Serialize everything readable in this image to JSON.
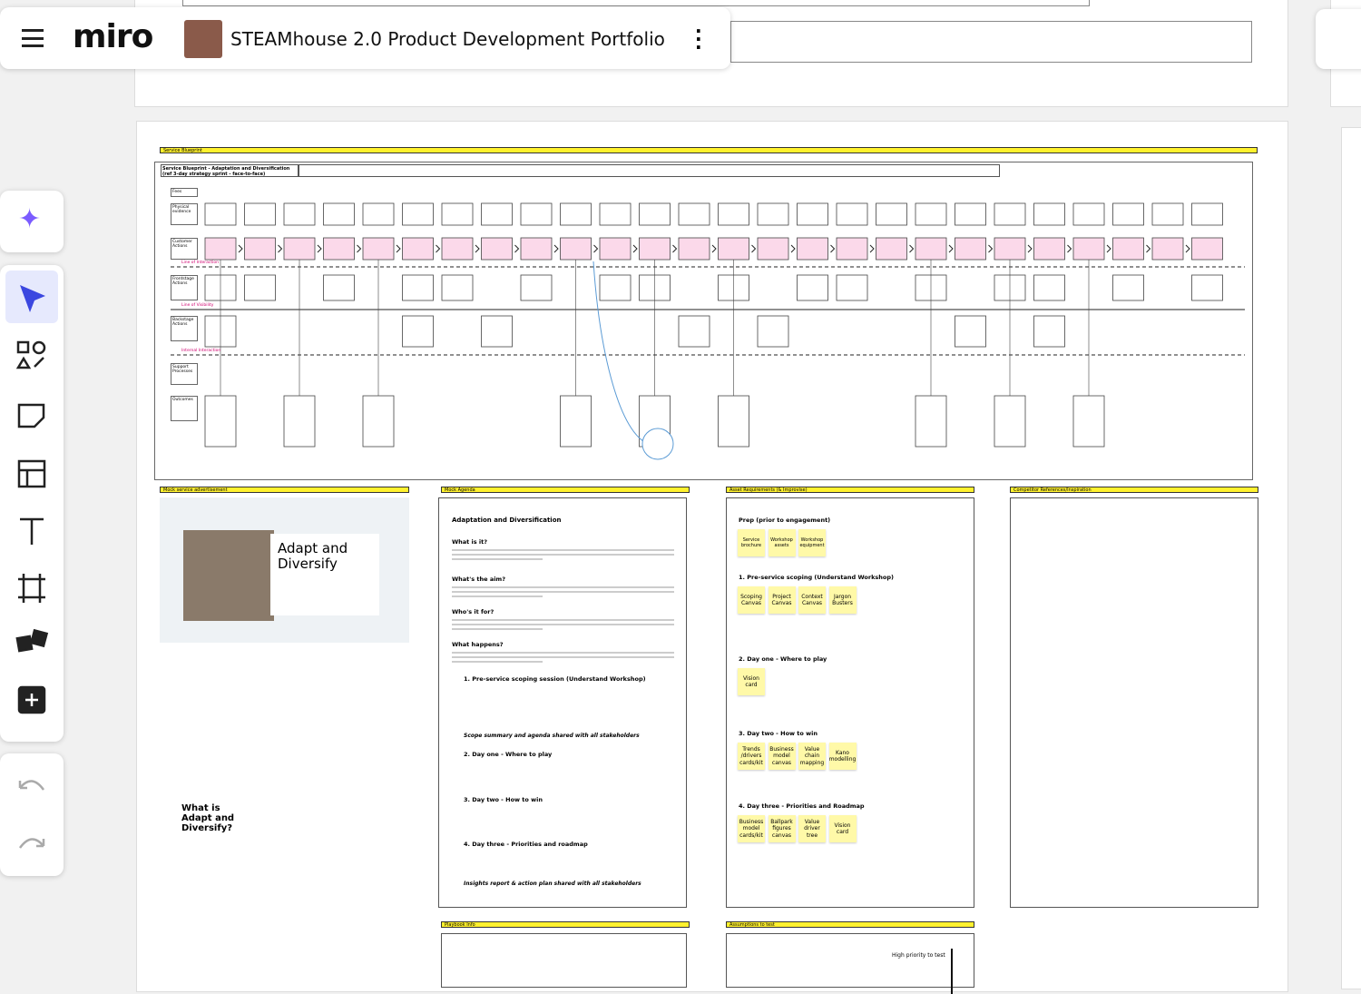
{
  "header": {
    "logo": "miro",
    "board_title": "STEAMhouse 2.0 Product Development Portfolio"
  },
  "blueprint": {
    "label": "Service Blueprint",
    "title": "Service Blueprint - Adaptation and Diversification (ref 3-day strategy sprint - face-to-face)",
    "lanes": [
      "Fees",
      "Physical evidence",
      "Customer Actions",
      "Frontstage Actions",
      "Backstage Actions",
      "Support Processes",
      "Outcomes"
    ],
    "lines": [
      "Line of Interaction",
      "Line of Visibility",
      "Internal Interaction"
    ]
  },
  "advert": {
    "label": "Mock service advertisement",
    "headline": "Adapt and Diversify",
    "question": "What is Adapt and Diversify?"
  },
  "agenda": {
    "label": "Mock Agenda",
    "heading": "Adaptation and Diversification",
    "items": [
      "What is it?",
      "What's the aim?",
      "Who's it for?",
      "What happens?",
      "1. Pre-service scoping session (Understand Workshop)",
      "Scope summary and agenda shared with all stakeholders",
      "2. Day one - Where to play",
      "3. Day two - How to win",
      "4. Day three - Priorities and roadmap",
      "Insights report & action plan shared with all stakeholders"
    ]
  },
  "assets": {
    "label": "Asset Requirements (& Improvise)",
    "sections": [
      {
        "title": "Prep (prior to engagement)",
        "stickies": [
          "Service brochure",
          "Workshop assets",
          "Workshop equipment"
        ]
      },
      {
        "title": "1. Pre-service scoping (Understand Workshop)",
        "stickies": [
          "Scoping Canvas",
          "Project Canvas",
          "Context Canvas",
          "Jargon Busters"
        ]
      },
      {
        "title": "2. Day one - Where to play",
        "stickies": [
          "Vision card"
        ]
      },
      {
        "title": "3. Day two - How to win",
        "stickies": [
          "Trends /drivers cards/kit",
          "Business model canvas",
          "Value chain mapping",
          "Kano modelling"
        ]
      },
      {
        "title": "4. Day three - Priorities and Roadmap",
        "stickies": [
          "Business model cards/kit",
          "Ballpark figures canvas",
          "Value driver tree",
          "Vision card"
        ]
      }
    ]
  },
  "competitor": {
    "label": "Competitor References/Inspiration"
  },
  "playbook": {
    "label": "Playbook Info"
  },
  "assumptions": {
    "label": "Assumptions to test",
    "axis": "High priority to test"
  }
}
